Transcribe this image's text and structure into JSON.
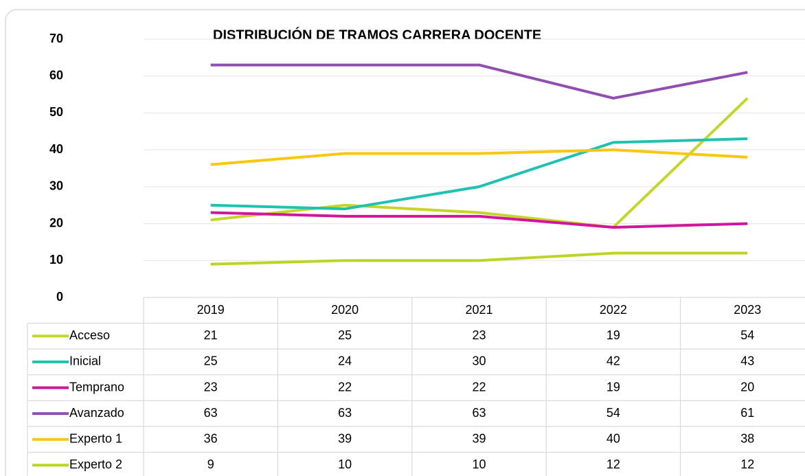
{
  "chart_data": {
    "type": "line",
    "title": "DISTRIBUCIÓN DE TRAMOS CARRERA DOCENTE",
    "categories": [
      "2019",
      "2020",
      "2021",
      "2022",
      "2023"
    ],
    "series": [
      {
        "name": "Acceso",
        "color": "#c3d62a",
        "values": [
          21,
          25,
          23,
          19,
          54
        ]
      },
      {
        "name": "Inicial",
        "color": "#1fc1b1",
        "values": [
          25,
          24,
          30,
          42,
          43
        ]
      },
      {
        "name": "Temprano",
        "color": "#d1169c",
        "values": [
          23,
          22,
          22,
          19,
          20
        ]
      },
      {
        "name": "Avanzado",
        "color": "#8e4fb0",
        "values": [
          63,
          63,
          63,
          54,
          61
        ]
      },
      {
        "name": "Experto 1",
        "color": "#fcc60b",
        "values": [
          36,
          39,
          39,
          40,
          38
        ]
      },
      {
        "name": "Experto 2",
        "color": "#bcd524",
        "values": [
          9,
          10,
          10,
          12,
          12
        ]
      }
    ],
    "ylim": [
      0,
      70
    ],
    "yticks": [
      0,
      10,
      20,
      30,
      40,
      50,
      60,
      70
    ],
    "grid": true
  }
}
